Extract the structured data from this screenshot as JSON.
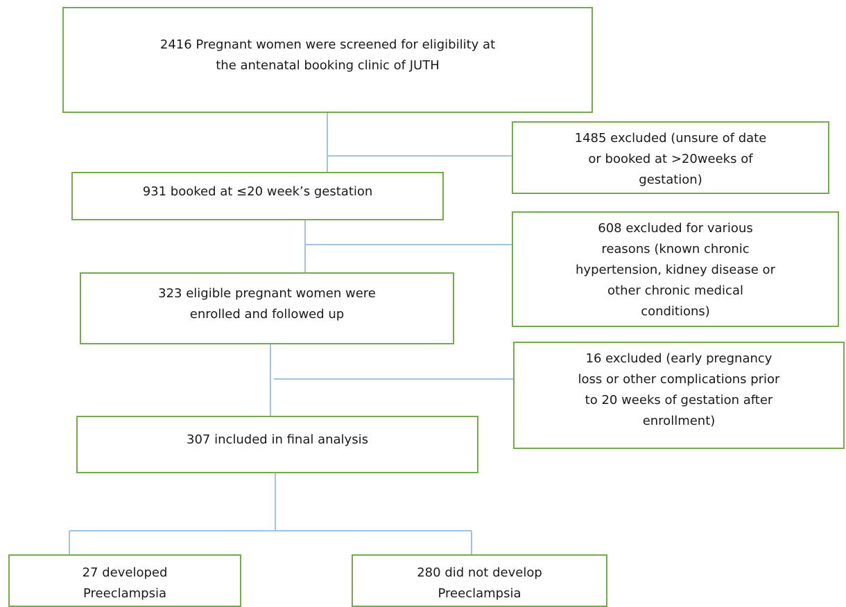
{
  "nodes": [
    {
      "lines": [
        "2416 Pregnant women were screened for eligibility at",
        "the antenatal booking clinic of JUTH"
      ]
    },
    {
      "lines": [
        "1485 excluded (unsure of date",
        "or booked at >20weeks of",
        "gestation)"
      ]
    },
    {
      "lines": [
        "931 booked at ≤20 week’s gestation"
      ]
    },
    {
      "lines": [
        "608 excluded for various",
        "reasons (known chronic",
        "hypertension, kidney disease or",
        "other chronic medical",
        "conditions)"
      ]
    },
    {
      "lines": [
        "323 eligible pregnant women were",
        "enrolled and followed up"
      ]
    },
    {
      "lines": [
        "16 excluded (early pregnancy",
        "loss or other complications prior",
        "to 20 weeks of gestation after",
        "enrollment)"
      ]
    },
    {
      "lines": [
        "307 included in final analysis"
      ]
    },
    {
      "lines": [
        "27 developed",
        "Preeclampsia"
      ]
    },
    {
      "lines": [
        "280 did not develop",
        "Preeclampsia"
      ]
    }
  ]
}
